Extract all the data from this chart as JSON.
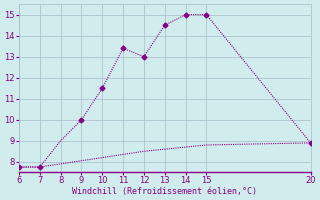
{
  "xlabel": "Windchill (Refroidissement éolien,°C)",
  "xlim": [
    6,
    20
  ],
  "ylim": [
    7.5,
    15.5
  ],
  "xticks": [
    6,
    7,
    8,
    9,
    10,
    11,
    12,
    13,
    14,
    15,
    20
  ],
  "yticks": [
    8,
    9,
    10,
    11,
    12,
    13,
    14,
    15
  ],
  "line1_x": [
    6,
    7,
    8,
    9,
    10,
    11,
    12,
    13,
    14,
    15,
    20
  ],
  "line1_y": [
    7.75,
    7.75,
    9.0,
    10.0,
    11.5,
    13.4,
    13.0,
    14.5,
    15.0,
    15.0,
    8.9
  ],
  "line1_markers_x": [
    6,
    7,
    9,
    10,
    11,
    12,
    13,
    14,
    15,
    20
  ],
  "line1_markers_y": [
    7.75,
    7.75,
    10.0,
    11.5,
    13.4,
    13.0,
    14.5,
    15.0,
    15.0,
    8.9
  ],
  "line2_x": [
    6,
    7,
    8,
    9,
    10,
    11,
    12,
    13,
    14,
    15,
    20
  ],
  "line2_y": [
    7.75,
    7.75,
    7.9,
    8.05,
    8.2,
    8.35,
    8.5,
    8.6,
    8.7,
    8.8,
    8.9
  ],
  "line_color": "#880088",
  "bg_color": "#d0ecec",
  "grid_color": "#aabbcc",
  "tick_color": "#880088",
  "xlabel_color": "#880088",
  "markersize": 2.5,
  "linewidth": 0.8
}
